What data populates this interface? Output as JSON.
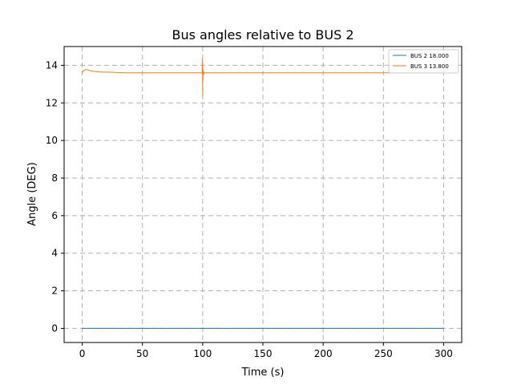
{
  "chart_data": {
    "type": "line",
    "title": "Bus angles relative to BUS 2",
    "xlabel": "Time (s)",
    "ylabel": "Angle (DEG)",
    "xlim": [
      -15,
      315
    ],
    "ylim": [
      -0.75,
      15
    ],
    "xticks": [
      0,
      50,
      100,
      150,
      200,
      250,
      300
    ],
    "yticks": [
      0,
      2,
      4,
      6,
      8,
      10,
      12,
      14
    ],
    "grid": true,
    "legend_position": "top-right",
    "series": [
      {
        "name": "BUS 2 18.000",
        "color": "#1f77b4",
        "x": [
          0,
          300
        ],
        "y": [
          0,
          0
        ]
      },
      {
        "name": "BUS 3 13.800",
        "color": "#ff7f0e",
        "x": [
          0,
          1,
          3,
          5,
          8,
          12,
          16,
          20,
          25,
          30,
          35,
          50,
          80,
          99.5,
          99.8,
          100,
          100.1,
          100.25,
          100.4,
          100.6,
          100.9,
          101.3,
          102,
          105,
          150,
          200,
          250,
          300
        ],
        "y": [
          13.6,
          13.7,
          13.78,
          13.74,
          13.7,
          13.66,
          13.64,
          13.64,
          13.63,
          13.62,
          13.6,
          13.6,
          13.6,
          13.6,
          14.35,
          12.35,
          14.0,
          13.2,
          13.75,
          13.5,
          13.65,
          13.58,
          13.6,
          13.6,
          13.6,
          13.6,
          13.6,
          13.6
        ]
      }
    ]
  }
}
